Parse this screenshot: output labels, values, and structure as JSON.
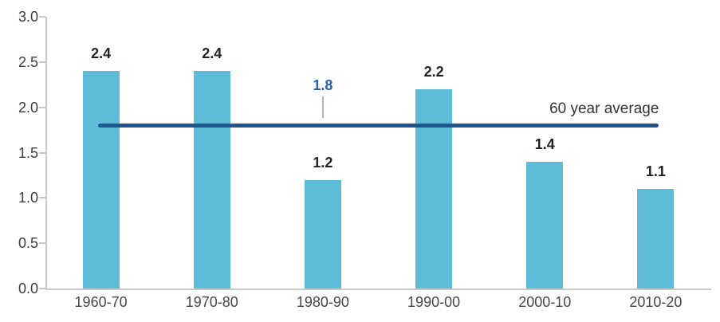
{
  "chart_data": {
    "type": "bar",
    "categories": [
      "1960-70",
      "1970-80",
      "1980-90",
      "1990-00",
      "2000-10",
      "2010-20"
    ],
    "values": [
      2.4,
      2.4,
      1.2,
      2.2,
      1.4,
      1.1
    ],
    "bar_value_labels": [
      "2.4",
      "2.4",
      "1.2",
      "2.2",
      "1.4",
      "1.1"
    ],
    "title": "",
    "xlabel": "",
    "ylabel": "",
    "ylim": [
      0.0,
      3.0
    ],
    "ytick_values": [
      0.0,
      0.5,
      1.0,
      1.5,
      2.0,
      2.5,
      3.0
    ],
    "ytick_labels": [
      "0.0",
      "0.5",
      "1.0",
      "1.5",
      "2.0",
      "2.5",
      "3.0"
    ],
    "grid": false,
    "legend": "none",
    "bar_color": "#5fbcd9",
    "reference_line": {
      "value": 1.8,
      "value_label": "1.8",
      "label": "60 year average",
      "line_color": "#22548f",
      "value_label_color": "#2d5fa8",
      "leader_color": "#b3b3b3"
    }
  },
  "colors": {
    "background": "#ffffff",
    "axis": "#c9c9c9",
    "ytick_text": "#3d3d3d",
    "xtick_text": "#474747",
    "bar_label_text": "#232323",
    "average_text": "#333333"
  }
}
